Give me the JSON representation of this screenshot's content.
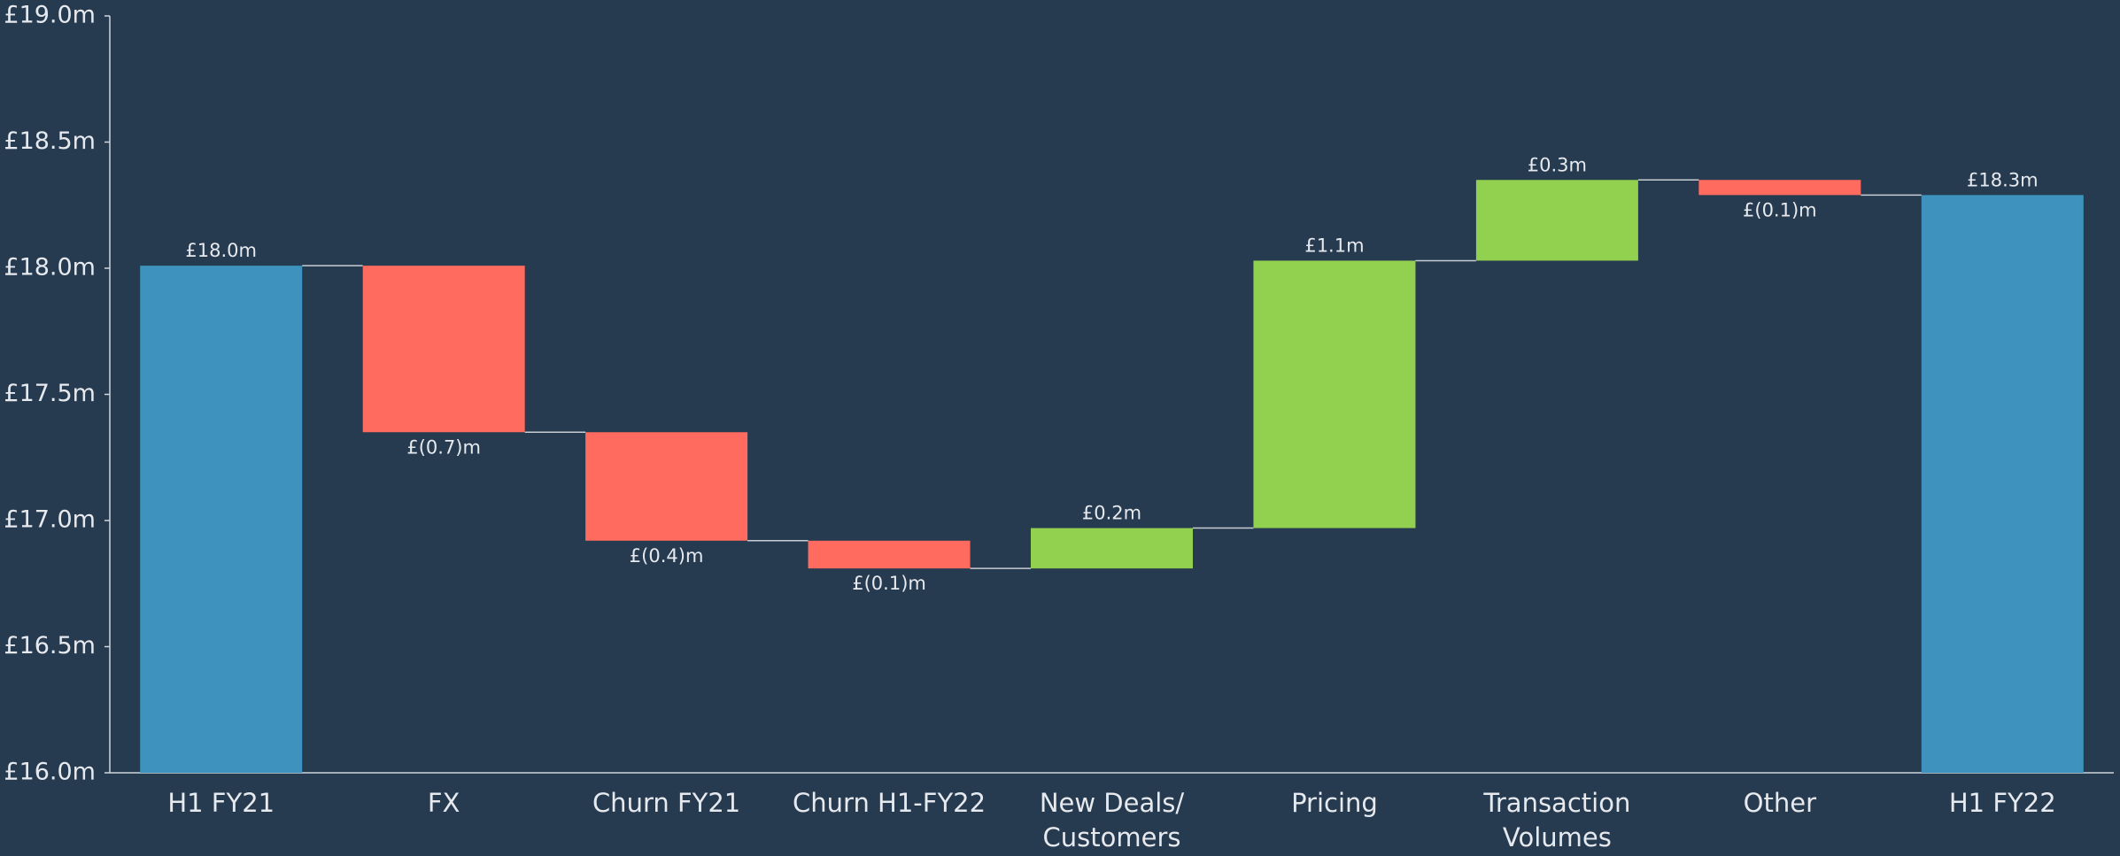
{
  "chart_data": {
    "type": "waterfall",
    "categories": [
      "H1 FY21",
      "FX",
      "Churn FY21",
      "Churn  H1-FY22",
      "New Deals/\nCustomers",
      "Pricing",
      "Transaction\nVolumes",
      "Other",
      "H1 FY22"
    ],
    "measure": [
      "total",
      "relative",
      "relative",
      "relative",
      "relative",
      "relative",
      "relative",
      "relative",
      "total"
    ],
    "values": [
      18.01,
      -0.66,
      -0.43,
      -0.11,
      0.16,
      1.06,
      0.32,
      -0.06,
      18.29
    ],
    "value_labels": [
      "£18.0m",
      "£(0.7)m",
      "£(0.4)m",
      "£(0.1)m",
      "£0.2m",
      "£1.1m",
      "£0.3m",
      "£(0.1)m",
      "£18.3m"
    ],
    "colors": {
      "total": "#3d93bd",
      "increase": "#92d050",
      "decrease": "#ff6b5e"
    },
    "ylim": [
      16,
      19
    ],
    "yticks": [
      {
        "value": 16,
        "label": "£16.0m"
      },
      {
        "value": 16.5,
        "label": "£16.5m"
      },
      {
        "value": 17,
        "label": "£17.0m"
      },
      {
        "value": 17.5,
        "label": "£17.5m"
      },
      {
        "value": 18,
        "label": "£18.0m"
      },
      {
        "value": 18.5,
        "label": "£18.5m"
      },
      {
        "value": 19,
        "label": "£19.0m"
      }
    ]
  }
}
